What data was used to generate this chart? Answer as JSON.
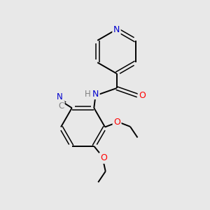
{
  "bg_color": "#e8e8e8",
  "bond_color": "#000000",
  "N_color": "#0000cd",
  "O_color": "#ff0000",
  "C_color": "#808080",
  "figsize": [
    3.0,
    3.0
  ],
  "dpi": 100,
  "xlim": [
    0,
    10
  ],
  "ylim": [
    0,
    10
  ]
}
